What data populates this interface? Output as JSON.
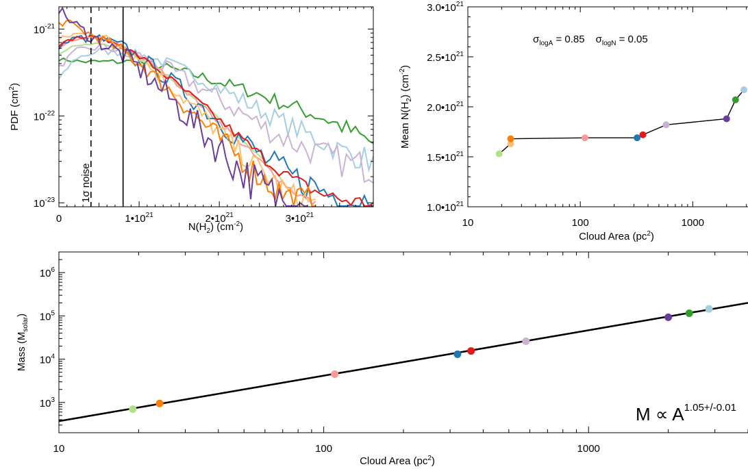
{
  "colors": {
    "purple": "#6a3d9a",
    "dark_orange": "#ff7f00",
    "light_orange": "#fdbf6f",
    "red": "#e31a1c",
    "blue": "#1f78b4",
    "green": "#33a02c",
    "light_green": "#b2df8a",
    "light_blue": "#a6cee3",
    "lavender": "#cab2d6",
    "pink": "#fb9a99"
  },
  "chart_data": [
    {
      "type": "line",
      "panel": "pdf",
      "ylabel_main": "PDF (cm",
      "ylabel_sup": "2",
      "ylabel_end": ")",
      "xlabel_main": "N(H",
      "xlabel_sub": "2",
      "xlabel_end": ") (cm",
      "xlabel_sup": "-2",
      "xlabel_close": ")",
      "xlim": [
        0,
        3.92e+21
      ],
      "ylim": [
        9e-24,
        1.8e-21
      ],
      "yscale": "log",
      "x_ticks": [
        {
          "value": 0,
          "label": "0"
        },
        {
          "value": 1e+21,
          "label": "1•10",
          "exp": "21"
        },
        {
          "value": 2e+21,
          "label": "2•10",
          "exp": "21"
        },
        {
          "value": 3e+21,
          "label": "3•10",
          "exp": "21"
        }
      ],
      "y_ticks": [
        {
          "value": 1e-21,
          "label": "10",
          "exp": "-21"
        },
        {
          "value": 1e-22,
          "label": "10",
          "exp": "-22"
        },
        {
          "value": 1e-23,
          "label": "10",
          "exp": "-23"
        }
      ],
      "vlines": [
        {
          "x": 4e+20,
          "style": "dashed",
          "label": "1σ noise"
        },
        {
          "x": 8e+20,
          "style": "solid"
        }
      ],
      "series": [
        {
          "color": "#33a02c",
          "x": [
            0,
            3e+20,
            6e+20,
            9e+20,
            1.2e+21,
            1.5e+21,
            1.8e+21,
            2.1e+21,
            2.4e+21,
            2.7e+21,
            3e+21,
            3.3e+21,
            3.6e+21,
            3.92e+21
          ],
          "y": [
            4.5e-22,
            4.2e-22,
            4.2e-22,
            4.2e-22,
            3.9e-22,
            3.3e-22,
            2.8e-22,
            2.3e-22,
            1.9e-22,
            1.5e-22,
            1.2e-22,
            9.5e-23,
            7e-23,
            4.8e-23
          ],
          "noise": 0.06
        },
        {
          "color": "#a6cee3",
          "x": [
            0,
            2e+20,
            5e+20,
            8e+20,
            1.1e+21,
            1.4e+21,
            1.7e+21,
            2e+21,
            2.3e+21,
            2.6e+21,
            2.9e+21,
            3.2e+21,
            3.5e+21,
            3.92e+21
          ],
          "y": [
            2.6e-22,
            4.6e-22,
            5.6e-22,
            5.4e-22,
            4.8e-22,
            3.9e-22,
            2.9e-22,
            2.1e-22,
            1.5e-22,
            1.05e-22,
            7.5e-23,
            5.5e-23,
            4e-23,
            3e-23
          ],
          "noise": 0.08
        },
        {
          "color": "#cab2d6",
          "x": [
            0,
            2e+20,
            5e+20,
            8e+20,
            1.1e+21,
            1.4e+21,
            1.7e+21,
            2e+21,
            2.3e+21,
            2.6e+21,
            2.9e+21,
            3.2e+21,
            3.5e+21,
            3.92e+21
          ],
          "y": [
            3.6e-22,
            5.5e-22,
            6.2e-22,
            5.7e-22,
            4.6e-22,
            3.3e-22,
            2.3e-22,
            1.55e-22,
            1.05e-22,
            7e-23,
            5e-23,
            3.8e-23,
            3e-23,
            2.5e-23
          ],
          "noise": 0.1
        },
        {
          "color": "#b2df8a",
          "x": [
            0,
            2e+20,
            5e+20,
            8e+20,
            1.1e+21,
            1.4e+21,
            1.7e+21,
            2e+21,
            2.3e+21,
            2.6e+21,
            2.9e+21
          ],
          "y": [
            5.2e-22,
            6.5e-22,
            6.8e-22,
            5.8e-22,
            4.1e-22,
            2.7e-22,
            1.6e-22,
            9e-23,
            5e-23,
            2.7e-23,
            1.4e-23
          ],
          "noise": 0.02
        },
        {
          "color": "#fb9a99",
          "x": [
            0,
            2e+20,
            5e+20,
            8e+20,
            1.1e+21,
            1.4e+21,
            1.7e+21,
            2e+21,
            2.3e+21,
            2.6e+21,
            2.9e+21,
            3.2e+21
          ],
          "y": [
            6e-22,
            7.6e-22,
            7.8e-22,
            6.3e-22,
            4.3e-22,
            2.7e-22,
            1.55e-22,
            8.5e-23,
            4.6e-23,
            2.5e-23,
            1.4e-23,
            9.5e-24
          ],
          "noise": 0.03
        },
        {
          "color": "#1f78b4",
          "x": [
            0,
            2e+20,
            5e+20,
            8e+20,
            1.1e+21,
            1.4e+21,
            1.7e+21,
            2e+21,
            2.3e+21,
            2.6e+21,
            2.9e+21,
            3.2e+21,
            3.5e+21,
            3.92e+21
          ],
          "y": [
            6.3e-22,
            7.8e-22,
            7.8e-22,
            6.2e-22,
            4.1e-22,
            2.5e-22,
            1.5e-22,
            8.8e-23,
            5.1e-23,
            3e-23,
            2e-23,
            1.5e-23,
            1.15e-23,
            1e-23
          ],
          "noise": 0.12
        },
        {
          "color": "#e31a1c",
          "x": [
            0,
            2e+20,
            5e+20,
            8e+20,
            1.1e+21,
            1.4e+21,
            1.7e+21,
            2e+21,
            2.3e+21,
            2.6e+21,
            2.9e+21,
            3.2e+21,
            3.5e+21,
            3.92e+21
          ],
          "y": [
            6.5e-22,
            8e-22,
            8e-22,
            6.3e-22,
            4.2e-22,
            2.6e-22,
            1.55e-22,
            9e-23,
            5.2e-23,
            3e-23,
            1.9e-23,
            1.35e-23,
            1.1e-23,
            9.5e-24
          ],
          "noise": 0.05
        },
        {
          "color": "#fdbf6f",
          "x": [
            0,
            2e+20,
            5e+20,
            8e+20,
            1.1e+21,
            1.4e+21,
            1.7e+21,
            2e+21,
            2.3e+21,
            2.6e+21,
            2.9e+21,
            3.2e+21
          ],
          "y": [
            7.5e-22,
            8.8e-22,
            8.4e-22,
            6.2e-22,
            3.9e-22,
            2.2e-22,
            1.2e-22,
            6.5e-23,
            3.5e-23,
            2e-23,
            1.2e-23,
            9.5e-24
          ],
          "noise": 0.1
        },
        {
          "color": "#ff7f00",
          "x": [
            0,
            1e+20,
            3e+20,
            5e+20,
            8e+20,
            1.1e+21,
            1.4e+21,
            1.7e+21,
            2e+21,
            2.3e+21,
            2.6e+21,
            2.9e+21,
            3.2e+21
          ],
          "y": [
            1.15e-21,
            1.2e-21,
            9.5e-22,
            7.8e-22,
            5.6e-22,
            3.4e-22,
            1.9e-22,
            1e-22,
            5.5e-23,
            3e-23,
            1.7e-23,
            1.1e-23,
            9.5e-24
          ],
          "noise": 0.12
        },
        {
          "color": "#6a3d9a",
          "x": [
            0,
            1e+20,
            3e+20,
            5e+20,
            8e+20,
            1.1e+21,
            1.4e+21,
            1.7e+21,
            2e+21,
            2.3e+21,
            2.6e+21,
            2.9e+21,
            3.1e+21
          ],
          "y": [
            1.7e-21,
            1.35e-21,
            9.5e-22,
            7.2e-22,
            5e-22,
            2.9e-22,
            1.55e-22,
            8e-23,
            4.2e-23,
            2.2e-23,
            1.3e-23,
            1e-23,
            9.5e-24
          ],
          "noise": 0.18
        }
      ]
    },
    {
      "type": "scatter",
      "panel": "mean",
      "ylabel_main": "Mean N(H",
      "ylabel_sub": "2",
      "ylabel_end": ") (cm",
      "ylabel_sup": "-2",
      "ylabel_close": ")",
      "xlabel_main": "Cloud Area (pc",
      "xlabel_sup": "2",
      "xlabel_end": ")",
      "xscale": "log",
      "xlim": [
        10,
        3100
      ],
      "ylim": [
        1e+21,
        3e+21
      ],
      "x_ticks": [
        {
          "value": 10,
          "label": "10"
        },
        {
          "value": 100,
          "label": "100"
        },
        {
          "value": 1000,
          "label": "1000"
        }
      ],
      "y_ticks": [
        {
          "value": 1e+21,
          "label": "1.0•10",
          "exp": "21"
        },
        {
          "value": 1.5e+21,
          "label": "1.5•10",
          "exp": "21"
        },
        {
          "value": 2e+21,
          "label": "2.0•10",
          "exp": "21"
        },
        {
          "value": 2.5e+21,
          "label": "2.5•10",
          "exp": "21"
        },
        {
          "value": 3e+21,
          "label": "3.0•10",
          "exp": "21"
        }
      ],
      "annotation": {
        "sigma": "σ",
        "sub_a": "logA",
        "val_a": " = 0.85",
        "sub_n": "logN",
        "val_n": " = 0.05"
      },
      "points": [
        {
          "x": 19,
          "y": 1.53e+21,
          "color": "#b2df8a"
        },
        {
          "x": 24,
          "y": 1.63e+21,
          "color": "#fdbf6f"
        },
        {
          "x": 24,
          "y": 1.68e+21,
          "color": "#ff7f00"
        },
        {
          "x": 110,
          "y": 1.69e+21,
          "color": "#fb9a99"
        },
        {
          "x": 320,
          "y": 1.69e+21,
          "color": "#1f78b4"
        },
        {
          "x": 360,
          "y": 1.72e+21,
          "color": "#e31a1c"
        },
        {
          "x": 580,
          "y": 1.82e+21,
          "color": "#cab2d6"
        },
        {
          "x": 2000,
          "y": 1.88e+21,
          "color": "#6a3d9a"
        },
        {
          "x": 2400,
          "y": 2.07e+21,
          "color": "#33a02c"
        },
        {
          "x": 2850,
          "y": 2.17e+21,
          "color": "#a6cee3"
        }
      ]
    },
    {
      "type": "scatter",
      "panel": "mass",
      "ylabel_main": "Mass (M",
      "ylabel_sub": "solar",
      "ylabel_end": ")",
      "xlabel_main": "Cloud Area (pc",
      "xlabel_sup": "2",
      "xlabel_end": ")",
      "xscale": "log",
      "yscale": "log",
      "xlim": [
        10,
        4000
      ],
      "ylim": [
        200,
        3000000
      ],
      "x_ticks": [
        {
          "value": 10,
          "label": "10"
        },
        {
          "value": 100,
          "label": "100"
        },
        {
          "value": 1000,
          "label": "1000"
        }
      ],
      "y_ticks": [
        {
          "value": 1000,
          "label": "10",
          "exp": "3"
        },
        {
          "value": 10000,
          "label": "10",
          "exp": "4"
        },
        {
          "value": 100000,
          "label": "10",
          "exp": "5"
        },
        {
          "value": 1000000,
          "label": "10",
          "exp": "6"
        }
      ],
      "fit": {
        "x": [
          10,
          4000
        ],
        "y": [
          370,
          200000
        ]
      },
      "annotation": {
        "main": "M ∝ A",
        "sup": "1.05+/-0.01"
      },
      "points": [
        {
          "x": 19,
          "y": 700,
          "color": "#b2df8a"
        },
        {
          "x": 24,
          "y": 950,
          "color": "#ff7f00"
        },
        {
          "x": 110,
          "y": 4500,
          "color": "#fb9a99"
        },
        {
          "x": 320,
          "y": 13000,
          "color": "#1f78b4"
        },
        {
          "x": 360,
          "y": 15500,
          "color": "#e31a1c"
        },
        {
          "x": 580,
          "y": 26000,
          "color": "#cab2d6"
        },
        {
          "x": 2000,
          "y": 93000,
          "color": "#6a3d9a"
        },
        {
          "x": 2400,
          "y": 115000,
          "color": "#33a02c"
        },
        {
          "x": 2850,
          "y": 145000,
          "color": "#a6cee3"
        }
      ]
    }
  ]
}
